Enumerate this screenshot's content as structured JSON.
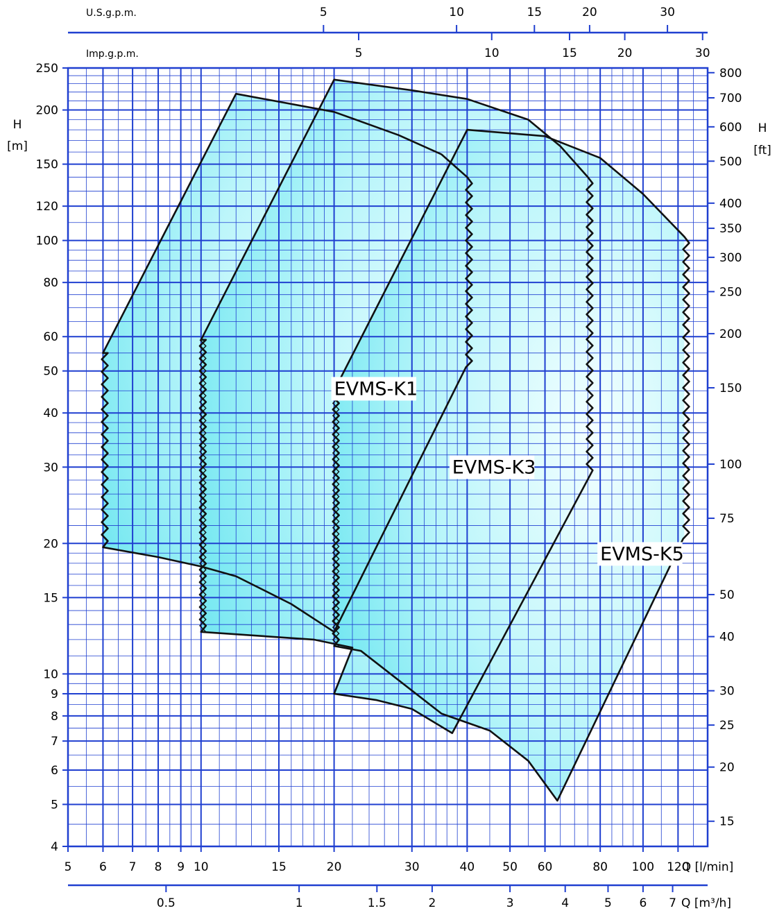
{
  "chart_data": {
    "type": "area",
    "colors": {
      "grid": "#1f3fd0",
      "fill_light": "#e9fdfe",
      "fill_dark": "#5fe6f2",
      "envelope": "#111111"
    },
    "axes": {
      "x_flow_lmin": {
        "label": "Q [l/min]",
        "scale": "log",
        "range": [
          5,
          140
        ],
        "ticks": [
          "5",
          "6",
          "7",
          "8",
          "9",
          "10",
          "15",
          "20",
          "30",
          "40",
          "50",
          "60",
          "80",
          "100",
          "120"
        ]
      },
      "x_flow_m3h": {
        "label": "Q [m³/h]",
        "scale": "log",
        "ticks": [
          "0.5",
          "1",
          "1.5",
          "2",
          "3",
          "4",
          "5",
          "6",
          "7"
        ]
      },
      "x_usgpm": {
        "label": "U.S.g.p.m.",
        "ticks": [
          "5",
          "10",
          "15",
          "20",
          "30"
        ]
      },
      "x_impgpm": {
        "label": "Imp.g.p.m.",
        "ticks": [
          "5",
          "10",
          "15",
          "20",
          "30"
        ]
      },
      "y_head_m": {
        "label_top": "H",
        "label_unit": "[m]",
        "scale": "log",
        "range": [
          4,
          250
        ],
        "ticks": [
          "4",
          "5",
          "6",
          "7",
          "8",
          "9",
          "10",
          "15",
          "20",
          "30",
          "40",
          "50",
          "60",
          "80",
          "100",
          "120",
          "150",
          "200",
          "250"
        ]
      },
      "y_head_ft": {
        "label_top": "H",
        "label_unit": "[ft]",
        "scale": "log",
        "ticks": [
          "15",
          "20",
          "25",
          "30",
          "40",
          "50",
          "75",
          "100",
          "150",
          "200",
          "250",
          "300",
          "350",
          "400",
          "500",
          "600",
          "700",
          "800"
        ]
      }
    },
    "grid": true,
    "series": [
      {
        "name": "EVMS-K1",
        "envelope": [
          [
            6,
            55
          ],
          [
            12,
            218
          ],
          [
            20,
            198
          ],
          [
            28,
            175
          ],
          [
            35,
            158
          ],
          [
            40,
            140
          ],
          [
            40,
            51
          ],
          [
            20,
            12.5
          ],
          [
            16,
            14.5
          ],
          [
            12,
            16.8
          ],
          [
            10,
            17.7
          ],
          [
            8,
            18.6
          ],
          [
            6,
            19.6
          ]
        ]
      },
      {
        "name": "EVMS-K3",
        "envelope": [
          [
            10,
            59
          ],
          [
            20,
            235
          ],
          [
            30,
            222
          ],
          [
            40,
            212
          ],
          [
            55,
            190
          ],
          [
            65,
            165
          ],
          [
            75,
            140
          ],
          [
            75,
            29.5
          ],
          [
            37,
            7.3
          ],
          [
            30,
            8.3
          ],
          [
            25,
            8.7
          ],
          [
            20,
            9
          ],
          [
            22,
            11.5
          ],
          [
            18,
            12
          ],
          [
            10,
            12.5
          ]
        ]
      },
      {
        "name": "EVMS-K5",
        "envelope": [
          [
            20,
            45
          ],
          [
            40,
            180
          ],
          [
            60,
            174
          ],
          [
            80,
            155
          ],
          [
            100,
            128
          ],
          [
            124,
            102
          ],
          [
            124,
            20.5
          ],
          [
            64,
            5.1
          ],
          [
            55,
            6.3
          ],
          [
            45,
            7.4
          ],
          [
            35,
            8.1
          ],
          [
            23,
            11.3
          ],
          [
            20,
            11.6
          ]
        ]
      }
    ]
  }
}
